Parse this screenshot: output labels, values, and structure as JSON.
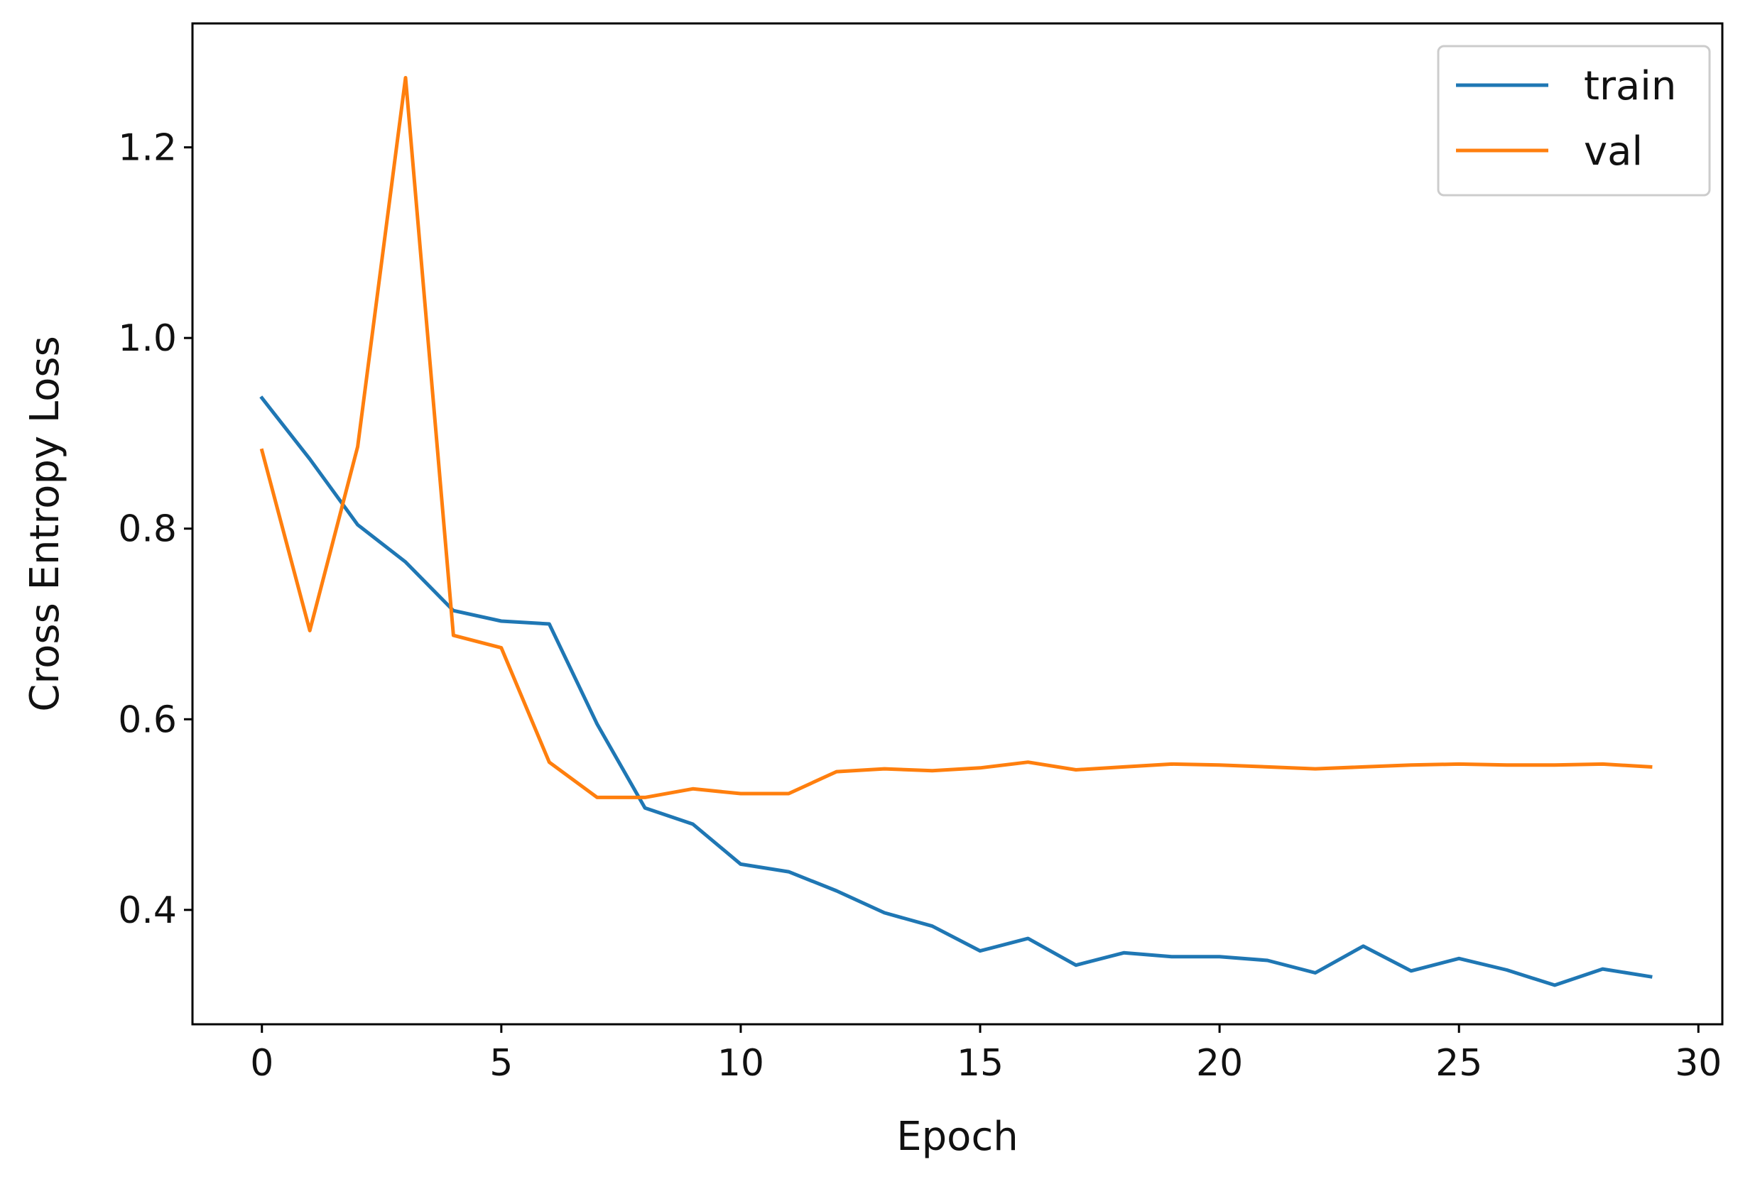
{
  "chart_data": {
    "type": "line",
    "title": "",
    "xlabel": "Epoch",
    "ylabel": "Cross Entropy Loss",
    "xlim": [
      -1.45,
      30.5
    ],
    "ylim": [
      0.28,
      1.33
    ],
    "xticks": [
      0,
      5,
      10,
      15,
      20,
      25,
      30
    ],
    "xtick_labels": [
      "0",
      "5",
      "10",
      "15",
      "20",
      "25",
      "30"
    ],
    "yticks": [
      0.4,
      0.6,
      0.8,
      1.0,
      1.2
    ],
    "ytick_labels": [
      "0.4",
      "0.6",
      "0.8",
      "1.0",
      "1.2"
    ],
    "grid": false,
    "legend_position": "top-right",
    "x": [
      0,
      1,
      2,
      3,
      4,
      5,
      6,
      7,
      8,
      9,
      10,
      11,
      12,
      13,
      14,
      15,
      16,
      17,
      18,
      19,
      20,
      21,
      22,
      23,
      24,
      25,
      26,
      27,
      28,
      29
    ],
    "series": [
      {
        "name": "train",
        "color": "#1f77b4",
        "values": [
          0.937,
          0.873,
          0.804,
          0.765,
          0.714,
          0.703,
          0.7,
          0.595,
          0.507,
          0.49,
          0.448,
          0.44,
          0.42,
          0.397,
          0.383,
          0.357,
          0.37,
          0.342,
          0.355,
          0.351,
          0.351,
          0.347,
          0.334,
          0.362,
          0.336,
          0.349,
          0.337,
          0.321,
          0.338,
          0.33
        ]
      },
      {
        "name": "val",
        "color": "#ff7f0e",
        "values": [
          0.882,
          0.693,
          0.886,
          1.273,
          0.688,
          0.675,
          0.555,
          0.518,
          0.518,
          0.527,
          0.522,
          0.522,
          0.545,
          0.548,
          0.546,
          0.549,
          0.555,
          0.547,
          0.55,
          0.553,
          0.552,
          0.55,
          0.548,
          0.55,
          0.552,
          0.553,
          0.552,
          0.552,
          0.553,
          0.55
        ]
      }
    ]
  }
}
